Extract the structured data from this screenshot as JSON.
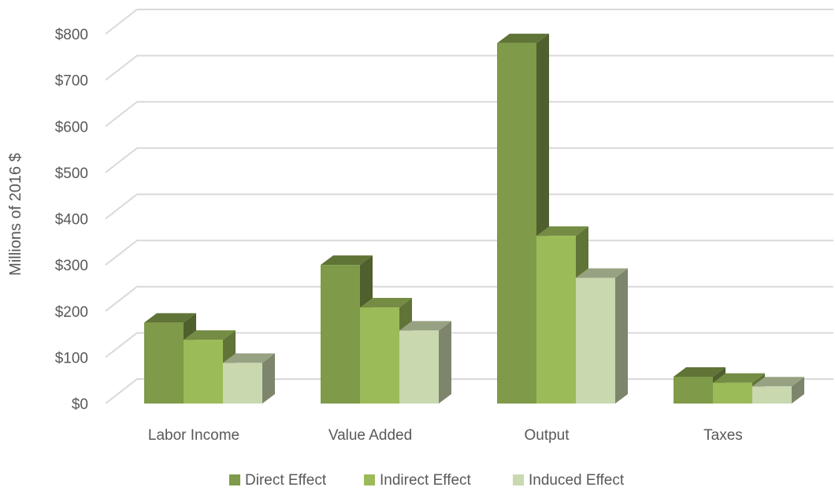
{
  "chart_data": {
    "type": "bar",
    "subtype": "3d-clustered-column",
    "title": "",
    "xlabel": "",
    "ylabel": "Millions of 2016 $",
    "ylim": [
      0,
      800
    ],
    "yticks": [
      "$0",
      "$100",
      "$200",
      "$300",
      "$400",
      "$500",
      "$600",
      "$700",
      "$800"
    ],
    "categories": [
      "Labor Income",
      "Value Added",
      "Output",
      "Taxes"
    ],
    "series": [
      {
        "name": "Direct Effect",
        "values": [
          175,
          300,
          780,
          58
        ],
        "color": "#7f9a48"
      },
      {
        "name": "Indirect Effect",
        "values": [
          138,
          208,
          363,
          45
        ],
        "color": "#9bbb59"
      },
      {
        "name": "Induced Effect",
        "values": [
          88,
          158,
          272,
          37
        ],
        "color": "#c9d8af"
      }
    ],
    "grid": true,
    "legend_position": "bottom"
  }
}
